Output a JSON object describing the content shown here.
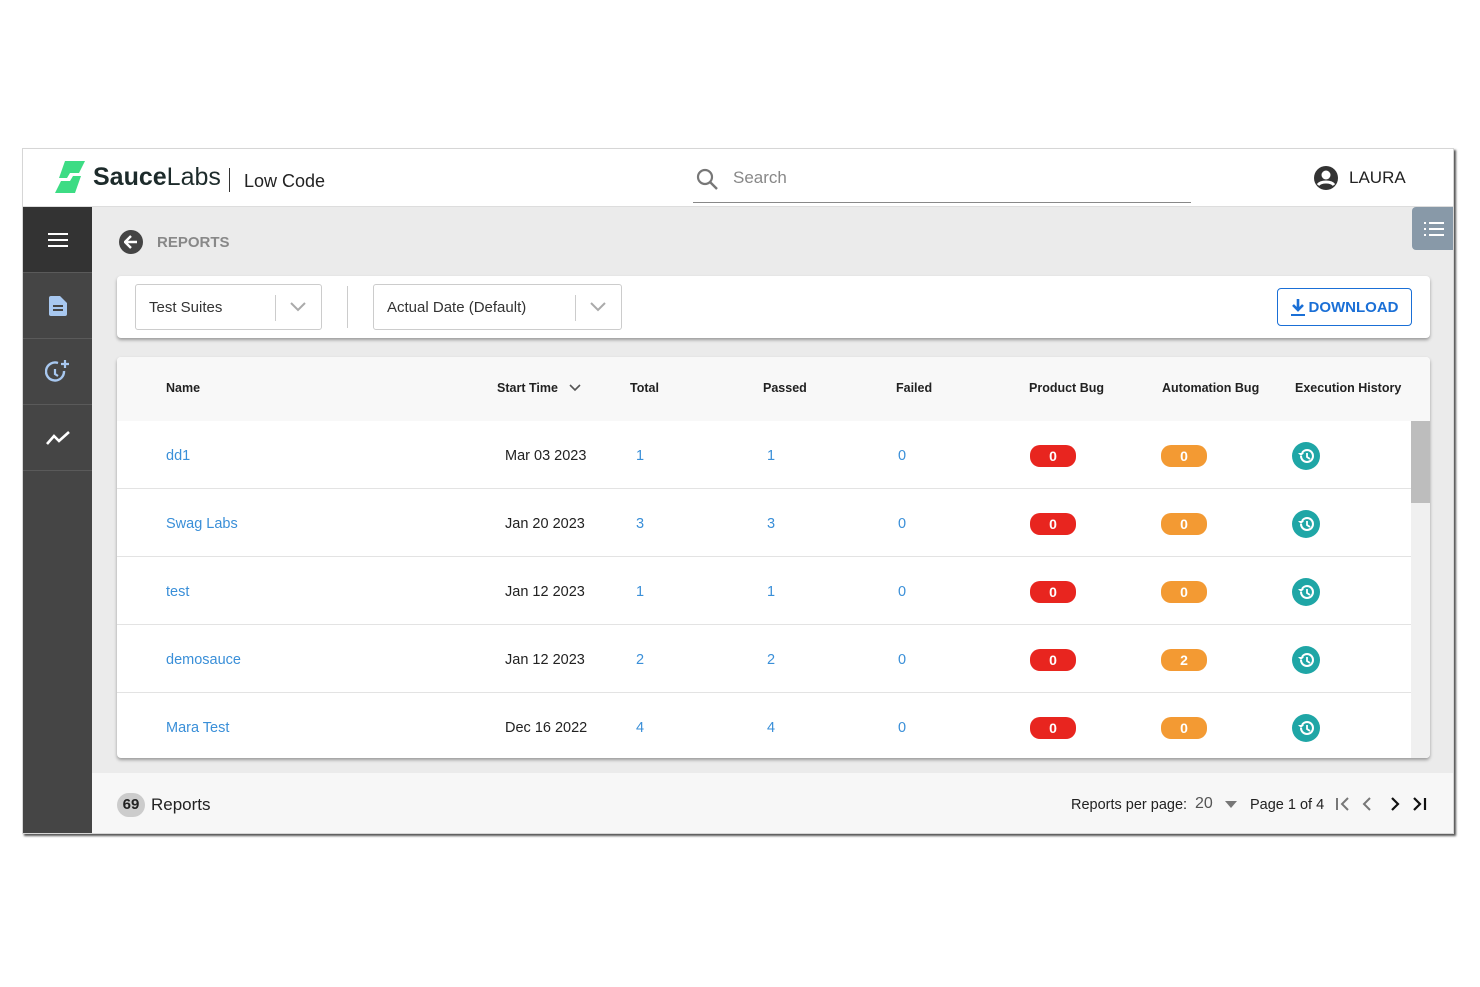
{
  "header": {
    "brand": "SauceLabs",
    "brand_bold": "Sauce",
    "brand_light": "Labs",
    "product": "Low Code",
    "search_placeholder": "Search",
    "user": "LAURA"
  },
  "sidebar": {
    "items": [
      {
        "icon": "menu-icon"
      },
      {
        "icon": "document-icon",
        "active": true
      },
      {
        "icon": "schedule-add-icon"
      },
      {
        "icon": "trend-icon"
      }
    ]
  },
  "page": {
    "title": "REPORTS"
  },
  "filters": {
    "group_by": "Test Suites",
    "date_mode": "Actual Date (Default)",
    "download_label": "DOWNLOAD"
  },
  "table": {
    "columns": [
      "Name",
      "Start Time",
      "Total",
      "Passed",
      "Failed",
      "Product Bug",
      "Automation Bug",
      "Execution History"
    ],
    "sorted_column": "Start Time",
    "rows": [
      {
        "name": "dd1",
        "start": "Mar 03 2023",
        "total": "1",
        "passed": "1",
        "failed": "0",
        "product_bug": "0",
        "automation_bug": "0"
      },
      {
        "name": "Swag Labs",
        "start": "Jan 20 2023",
        "total": "3",
        "passed": "3",
        "failed": "0",
        "product_bug": "0",
        "automation_bug": "0"
      },
      {
        "name": "test",
        "start": "Jan 12 2023",
        "total": "1",
        "passed": "1",
        "failed": "0",
        "product_bug": "0",
        "automation_bug": "0"
      },
      {
        "name": "demosauce",
        "start": "Jan 12 2023",
        "total": "2",
        "passed": "2",
        "failed": "0",
        "product_bug": "0",
        "automation_bug": "2"
      },
      {
        "name": "Mara Test",
        "start": "Dec 16 2022",
        "total": "4",
        "passed": "4",
        "failed": "0",
        "product_bug": "0",
        "automation_bug": "0"
      }
    ]
  },
  "footer": {
    "count": "69",
    "count_label": "Reports",
    "per_page_label": "Reports per page:",
    "per_page": "20",
    "page_info": "Page 1 of 4"
  },
  "colors": {
    "brand_green": "#3ddc84",
    "link": "#3a8fd8",
    "product_bug": "#e8251f",
    "automation_bug": "#f39a33",
    "history": "#1fa6a6",
    "sidebar": "#454545",
    "download": "#1a6fd6"
  }
}
